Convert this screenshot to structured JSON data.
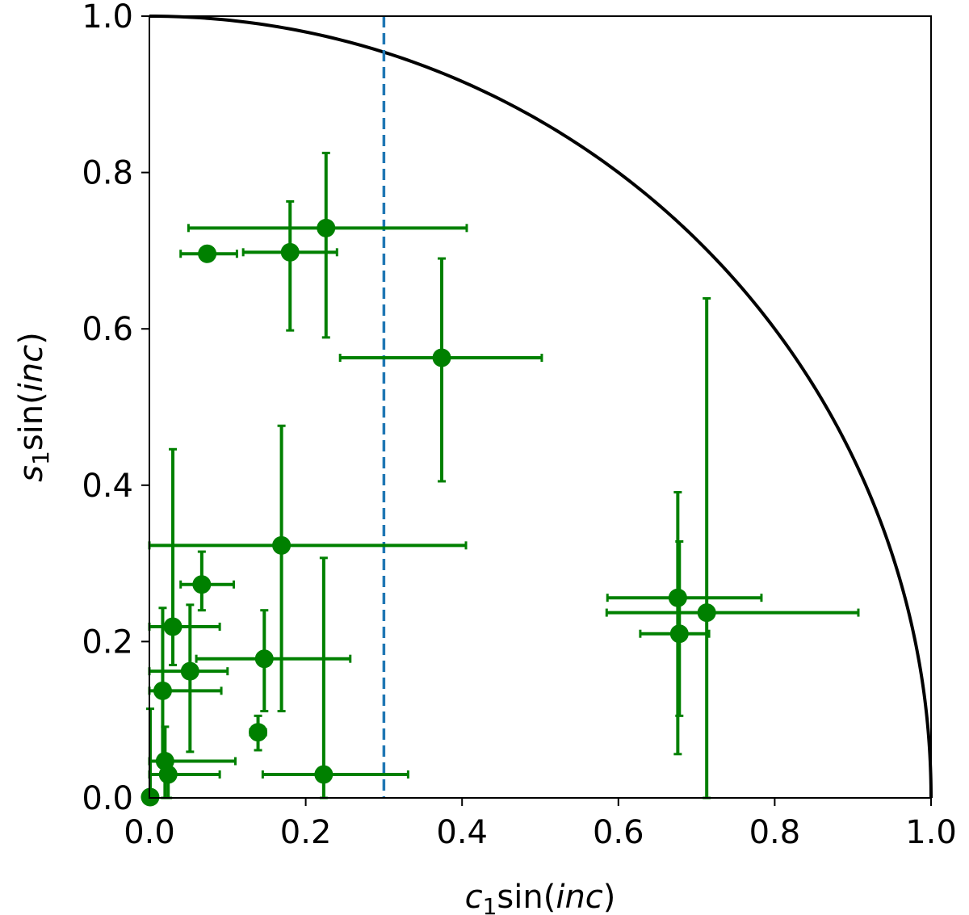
{
  "chart_data": {
    "type": "scatter",
    "xlabel": {
      "pre": "c",
      "sub": "1",
      "mid": "sin(",
      "it": "inc",
      "post": ")"
    },
    "ylabel": {
      "pre": "s",
      "sub": "1",
      "mid": "sin(",
      "it": "inc",
      "post": ")"
    },
    "xlim": [
      0.0,
      1.0
    ],
    "ylim": [
      0.0,
      1.0
    ],
    "xticks": [
      "0.0",
      "0.2",
      "0.4",
      "0.6",
      "0.8",
      "1.0"
    ],
    "yticks": [
      "0.0",
      "0.2",
      "0.4",
      "0.6",
      "0.8",
      "1.0"
    ],
    "grid": false,
    "reference_line": {
      "x": 0.3,
      "style": "dashed",
      "color": "#1f77b4"
    },
    "boundary_curve": {
      "shape": "unit quarter circle x^2 + y^2 = 1",
      "color": "#000000"
    },
    "marker_color": "#008000",
    "points": [
      {
        "x": 0.074,
        "y": 0.696,
        "xerr": [
          0.034,
          0.038
        ],
        "yerr": [
          0.0,
          0.0
        ]
      },
      {
        "x": 0.18,
        "y": 0.698,
        "xerr": [
          0.06,
          0.06
        ],
        "yerr": [
          0.1,
          0.065
        ]
      },
      {
        "x": 0.226,
        "y": 0.729,
        "xerr": [
          0.176,
          0.18
        ],
        "yerr": [
          0.14,
          0.096
        ]
      },
      {
        "x": 0.374,
        "y": 0.563,
        "xerr": [
          0.13,
          0.128
        ],
        "yerr": [
          0.158,
          0.127
        ]
      },
      {
        "x": 0.169,
        "y": 0.323,
        "xerr": [
          0.169,
          0.236
        ],
        "yerr": [
          0.212,
          0.153
        ]
      },
      {
        "x": 0.067,
        "y": 0.273,
        "xerr": [
          0.027,
          0.041
        ],
        "yerr": [
          0.033,
          0.042
        ]
      },
      {
        "x": 0.03,
        "y": 0.219,
        "xerr": [
          0.03,
          0.06
        ],
        "yerr": [
          0.049,
          0.227
        ]
      },
      {
        "x": 0.052,
        "y": 0.162,
        "xerr": [
          0.052,
          0.048
        ],
        "yerr": [
          0.103,
          0.085
        ]
      },
      {
        "x": 0.147,
        "y": 0.178,
        "xerr": [
          0.087,
          0.11
        ],
        "yerr": [
          0.067,
          0.062
        ]
      },
      {
        "x": 0.017,
        "y": 0.137,
        "xerr": [
          0.017,
          0.075
        ],
        "yerr": [
          0.097,
          0.106
        ]
      },
      {
        "x": 0.139,
        "y": 0.084,
        "xerr": [
          0.01,
          0.01
        ],
        "yerr": [
          0.023,
          0.021
        ]
      },
      {
        "x": 0.02,
        "y": 0.047,
        "xerr": [
          0.02,
          0.09
        ],
        "yerr": [
          0.047,
          0.044
        ]
      },
      {
        "x": 0.024,
        "y": 0.03,
        "xerr": [
          0.024,
          0.066
        ],
        "yerr": [
          0.03,
          0.0
        ]
      },
      {
        "x": 0.223,
        "y": 0.03,
        "xerr": [
          0.078,
          0.108
        ],
        "yerr": [
          0.03,
          0.277
        ]
      },
      {
        "x": 0.001,
        "y": 0.001,
        "xerr": [
          0.0,
          0.0
        ],
        "yerr": [
          0.0,
          0.113
        ]
      },
      {
        "x": 0.676,
        "y": 0.256,
        "xerr": [
          0.09,
          0.107
        ],
        "yerr": [
          0.2,
          0.135
        ]
      },
      {
        "x": 0.678,
        "y": 0.21,
        "xerr": [
          0.05,
          0.038
        ],
        "yerr": [
          0.105,
          0.118
        ]
      },
      {
        "x": 0.713,
        "y": 0.237,
        "xerr": [
          0.128,
          0.194
        ],
        "yerr": [
          0.237,
          0.402
        ]
      }
    ]
  }
}
